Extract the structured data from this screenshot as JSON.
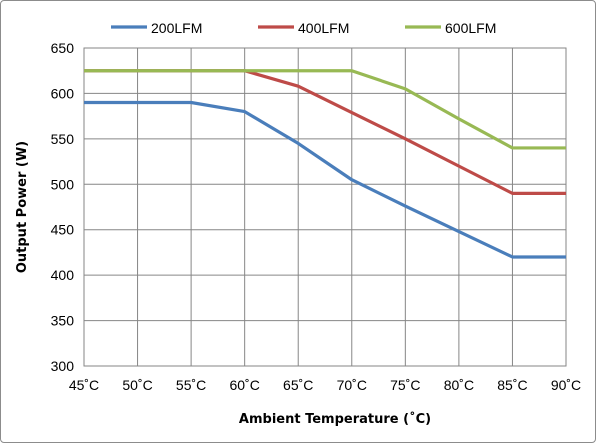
{
  "chart_data": {
    "type": "line",
    "title": "",
    "xlabel": "Ambient Temperature (˚C)",
    "ylabel": "Output Power (W)",
    "x": [
      45,
      50,
      55,
      60,
      65,
      70,
      75,
      80,
      85,
      90
    ],
    "x_tick_labels": [
      "45˚C",
      "50˚C",
      "55˚C",
      "60˚C",
      "65˚C",
      "70˚C",
      "75˚C",
      "80˚C",
      "85˚C",
      "90˚C"
    ],
    "xlim": [
      45,
      90
    ],
    "ylim": [
      300,
      650
    ],
    "y_ticks": [
      300,
      350,
      400,
      450,
      500,
      550,
      600,
      650
    ],
    "grid": true,
    "legend_position": "top",
    "series": [
      {
        "name": "200LFM",
        "color": "#4a7ebb",
        "values": [
          590,
          590,
          590,
          580,
          545,
          505,
          476,
          448,
          420,
          420
        ]
      },
      {
        "name": "400LFM",
        "color": "#be4b48",
        "values": [
          625,
          625,
          625,
          625,
          608,
          579,
          550,
          520,
          490,
          490
        ]
      },
      {
        "name": "600LFM",
        "color": "#98b954",
        "values": [
          625,
          625,
          625,
          625,
          625,
          625,
          605,
          572,
          540,
          540
        ]
      }
    ]
  }
}
